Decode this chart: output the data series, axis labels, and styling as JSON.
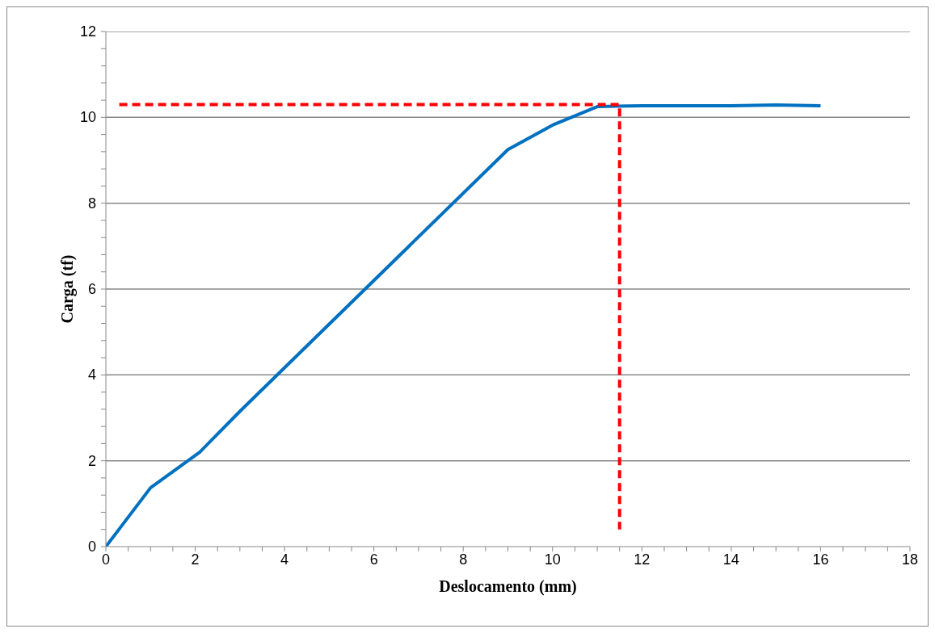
{
  "chart_data": {
    "type": "line",
    "xlabel": "Deslocamento (mm)",
    "ylabel": "Carga (tf)",
    "xlim": [
      0,
      18
    ],
    "ylim": [
      0,
      12
    ],
    "xticks": [
      0,
      {
        "value": 0.5,
        "label": null
      },
      {
        "value": 1,
        "label": null
      },
      {
        "value": 1.5,
        "label": null
      },
      2,
      {
        "value": 2.5,
        "label": null
      },
      {
        "value": 3,
        "label": null
      },
      {
        "value": 3.5,
        "label": null
      },
      4,
      {
        "value": 4.5,
        "label": null
      },
      {
        "value": 5,
        "label": null
      },
      {
        "value": 5.5,
        "label": null
      },
      6,
      {
        "value": 6.5,
        "label": null
      },
      {
        "value": 7,
        "label": null
      },
      {
        "value": 7.5,
        "label": null
      },
      8,
      {
        "value": 8.5,
        "label": null
      },
      {
        "value": 9,
        "label": null
      },
      {
        "value": 9.5,
        "label": null
      },
      10,
      {
        "value": 10.5,
        "label": null
      },
      {
        "value": 11,
        "label": null
      },
      {
        "value": 11.5,
        "label": null
      },
      12,
      {
        "value": 12.5,
        "label": null
      },
      {
        "value": 13,
        "label": null
      },
      {
        "value": 13.5,
        "label": null
      },
      14,
      {
        "value": 14.5,
        "label": null
      },
      {
        "value": 15,
        "label": null
      },
      {
        "value": 15.5,
        "label": null
      },
      16,
      {
        "value": 16.5,
        "label": null
      },
      {
        "value": 17,
        "label": null
      },
      {
        "value": 17.5,
        "label": null
      },
      18
    ],
    "yticks": [
      0,
      {
        "value": 0.4,
        "label": null
      },
      {
        "value": 0.8,
        "label": null
      },
      {
        "value": 1.2,
        "label": null
      },
      {
        "value": 1.6,
        "label": null
      },
      2,
      {
        "value": 2.4,
        "label": null
      },
      {
        "value": 2.8,
        "label": null
      },
      {
        "value": 3.2,
        "label": null
      },
      {
        "value": 3.6,
        "label": null
      },
      4,
      {
        "value": 4.4,
        "label": null
      },
      {
        "value": 4.8,
        "label": null
      },
      {
        "value": 5.2,
        "label": null
      },
      {
        "value": 5.6,
        "label": null
      },
      6,
      {
        "value": 6.4,
        "label": null
      },
      {
        "value": 6.8,
        "label": null
      },
      {
        "value": 7.2,
        "label": null
      },
      {
        "value": 7.6,
        "label": null
      },
      8,
      {
        "value": 8.4,
        "label": null
      },
      {
        "value": 8.8,
        "label": null
      },
      {
        "value": 9.2,
        "label": null
      },
      {
        "value": 9.6,
        "label": null
      },
      10,
      {
        "value": 10.4,
        "label": null
      },
      {
        "value": 10.8,
        "label": null
      },
      {
        "value": 11.2,
        "label": null
      },
      {
        "value": 11.6,
        "label": null
      },
      12
    ],
    "grid": "y",
    "marker": "none",
    "series": [
      {
        "color": "#0070c0",
        "line_style": "solid",
        "x": [
          0,
          1,
          2.1,
          3,
          9,
          10,
          11,
          12,
          14,
          15,
          16
        ],
        "values": [
          0,
          1.37,
          2.2,
          3.15,
          9.25,
          9.82,
          10.25,
          10.27,
          10.27,
          10.29,
          10.27
        ]
      },
      {
        "color": "#ff0000",
        "line_style": "dashed",
        "x": [
          0.3,
          11.5,
          11.5
        ],
        "values": [
          10.3,
          10.3,
          0.4
        ]
      }
    ]
  }
}
